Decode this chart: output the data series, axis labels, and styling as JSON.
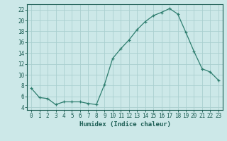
{
  "x": [
    0,
    1,
    2,
    3,
    4,
    5,
    6,
    7,
    8,
    9,
    10,
    11,
    12,
    13,
    14,
    15,
    16,
    17,
    18,
    19,
    20,
    21,
    22,
    23
  ],
  "y": [
    7.5,
    5.8,
    5.6,
    4.5,
    5.0,
    5.0,
    5.0,
    4.7,
    4.5,
    8.2,
    13.0,
    14.8,
    16.4,
    18.3,
    19.8,
    20.9,
    21.5,
    22.2,
    21.2,
    17.8,
    14.3,
    11.1,
    10.5,
    9.0
  ],
  "line_color": "#2d7d6e",
  "marker": "+",
  "marker_size": 3,
  "bg_color": "#cce8e8",
  "grid_color": "#aacfcf",
  "xlabel": "Humidex (Indice chaleur)",
  "xlim": [
    -0.5,
    23.5
  ],
  "ylim": [
    3.5,
    23.0
  ],
  "yticks": [
    4,
    6,
    8,
    10,
    12,
    14,
    16,
    18,
    20,
    22
  ],
  "xticks": [
    0,
    1,
    2,
    3,
    4,
    5,
    6,
    7,
    8,
    9,
    10,
    11,
    12,
    13,
    14,
    15,
    16,
    17,
    18,
    19,
    20,
    21,
    22,
    23
  ],
  "xtick_labels": [
    "0",
    "1",
    "2",
    "3",
    "4",
    "5",
    "6",
    "7",
    "8",
    "9",
    "10",
    "11",
    "12",
    "13",
    "14",
    "15",
    "16",
    "17",
    "18",
    "19",
    "20",
    "21",
    "22",
    "23"
  ],
  "tick_color": "#1a5c52",
  "axis_color": "#1a5c52",
  "label_fontsize": 6.5,
  "tick_fontsize": 5.5,
  "linewidth": 0.9,
  "markeredgewidth": 0.9
}
